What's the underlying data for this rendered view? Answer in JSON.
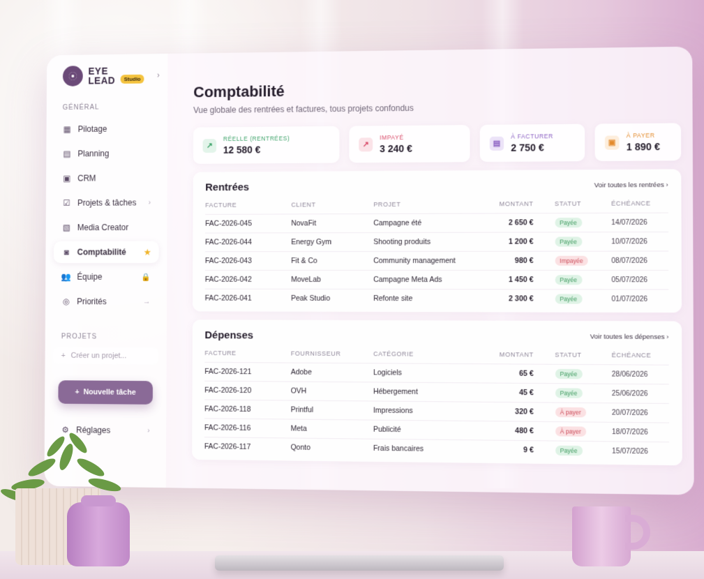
{
  "brand": {
    "name_line1": "EYE",
    "name_line2": "LEAD",
    "badge": "Studio"
  },
  "sidebar": {
    "section_general": "GÉNÉRAL",
    "items": [
      {
        "label": "Pilotage",
        "icon": "dashboard-icon"
      },
      {
        "label": "Planning",
        "icon": "calendar-icon"
      },
      {
        "label": "CRM",
        "icon": "contacts-icon"
      },
      {
        "label": "Projets & tâches",
        "icon": "tasks-icon",
        "tail": "›"
      },
      {
        "label": "Media Creator",
        "icon": "media-icon"
      },
      {
        "label": "Comptabilité",
        "icon": "accounting-icon",
        "active": true,
        "tail": "★"
      },
      {
        "label": "Équipe",
        "icon": "team-icon",
        "tail": "🔒"
      },
      {
        "label": "Priorités",
        "icon": "priority-icon",
        "tail": "→"
      }
    ],
    "section_projects": "PROJETS",
    "create_project": "Créer un projet...",
    "new_task_button": "Nouvelle tâche",
    "settings": "Réglages"
  },
  "page": {
    "title": "Comptabilité",
    "subtitle": "Vue globale des rentrées et factures, tous projets confondus"
  },
  "kpis": [
    {
      "label": "Réelle (rentrées)",
      "value": "12 580 €",
      "color": "#3ea36a",
      "bg": "#e3f4ea",
      "icon": "trend-up-icon"
    },
    {
      "label": "Impayé",
      "value": "3 240 €",
      "color": "#d94c6a",
      "bg": "#fbe3e8",
      "icon": "trend-alert-icon"
    },
    {
      "label": "À facturer",
      "value": "2 750 €",
      "color": "#8a5fc2",
      "bg": "#ece3f8",
      "icon": "invoice-icon"
    },
    {
      "label": "À payer",
      "value": "1 890 €",
      "color": "#e38a2c",
      "bg": "#fdeedd",
      "icon": "payment-icon"
    }
  ],
  "income": {
    "title": "Rentrées",
    "see_all": "Voir toutes les rentrées",
    "headers": [
      "FACTURE",
      "CLIENT",
      "PROJET",
      "MONTANT",
      "STATUT",
      "ÉCHÉANCE"
    ],
    "rows": [
      {
        "invoice": "FAC-2026-045",
        "party": "NovaFit",
        "project": "Campagne été",
        "amount": "2 650 €",
        "status": "Payée",
        "kind": "paid",
        "due": "14/07/2026"
      },
      {
        "invoice": "FAC-2026-044",
        "party": "Energy Gym",
        "project": "Shooting produits",
        "amount": "1 200 €",
        "status": "Payée",
        "kind": "paid",
        "due": "10/07/2026"
      },
      {
        "invoice": "FAC-2026-043",
        "party": "Fit & Co",
        "project": "Community management",
        "amount": "980 €",
        "status": "Impayée",
        "kind": "unpaid",
        "due": "08/07/2026"
      },
      {
        "invoice": "FAC-2026-042",
        "party": "MoveLab",
        "project": "Campagne Meta Ads",
        "amount": "1 450 €",
        "status": "Payée",
        "kind": "paid",
        "due": "05/07/2026"
      },
      {
        "invoice": "FAC-2026-041",
        "party": "Peak Studio",
        "project": "Refonte site",
        "amount": "2 300 €",
        "status": "Payée",
        "kind": "paid",
        "due": "01/07/2026"
      }
    ]
  },
  "expenses": {
    "title": "Dépenses",
    "see_all": "Voir toutes les dépenses",
    "headers": [
      "FACTURE",
      "FOURNISSEUR",
      "CATÉGORIE",
      "MONTANT",
      "STATUT",
      "ÉCHÉANCE"
    ],
    "rows": [
      {
        "invoice": "FAC-2026-121",
        "party": "Adobe",
        "project": "Logiciels",
        "amount": "65 €",
        "status": "Payée",
        "kind": "paid",
        "due": "28/06/2026"
      },
      {
        "invoice": "FAC-2026-120",
        "party": "OVH",
        "project": "Hébergement",
        "amount": "45 €",
        "status": "Payée",
        "kind": "paid",
        "due": "25/06/2026"
      },
      {
        "invoice": "FAC-2026-118",
        "party": "Printful",
        "project": "Impressions",
        "amount": "320 €",
        "status": "À payer",
        "kind": "todo",
        "due": "20/07/2026"
      },
      {
        "invoice": "FAC-2026-116",
        "party": "Meta",
        "project": "Publicité",
        "amount": "480 €",
        "status": "À payer",
        "kind": "todo",
        "due": "18/07/2026"
      },
      {
        "invoice": "FAC-2026-117",
        "party": "Qonto",
        "project": "Frais bancaires",
        "amount": "9 €",
        "status": "Payée",
        "kind": "paid",
        "due": "15/07/2026"
      }
    ]
  }
}
